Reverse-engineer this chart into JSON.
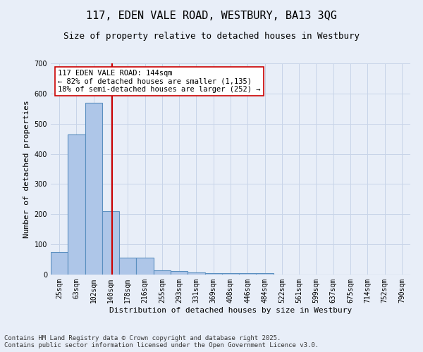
{
  "title": "117, EDEN VALE ROAD, WESTBURY, BA13 3QG",
  "subtitle": "Size of property relative to detached houses in Westbury",
  "xlabel": "Distribution of detached houses by size in Westbury",
  "ylabel": "Number of detached properties",
  "footer_line1": "Contains HM Land Registry data © Crown copyright and database right 2025.",
  "footer_line2": "Contains public sector information licensed under the Open Government Licence v3.0.",
  "categories": [
    "25sqm",
    "63sqm",
    "102sqm",
    "140sqm",
    "178sqm",
    "216sqm",
    "255sqm",
    "293sqm",
    "331sqm",
    "369sqm",
    "408sqm",
    "446sqm",
    "484sqm",
    "522sqm",
    "561sqm",
    "599sqm",
    "637sqm",
    "675sqm",
    "714sqm",
    "752sqm",
    "790sqm"
  ],
  "values": [
    75,
    465,
    570,
    210,
    57,
    57,
    15,
    12,
    8,
    5,
    5,
    5,
    5,
    0,
    0,
    0,
    0,
    0,
    0,
    0,
    0
  ],
  "bar_color": "#aec6e8",
  "bar_edge_color": "#5a8fc0",
  "bar_edge_width": 0.8,
  "grid_color": "#c8d4e8",
  "bg_color": "#e8eef8",
  "ylim": [
    0,
    700
  ],
  "yticks": [
    0,
    100,
    200,
    300,
    400,
    500,
    600,
    700
  ],
  "vline_x_index": 3.1,
  "vline_color": "#cc0000",
  "annotation_line1": "117 EDEN VALE ROAD: 144sqm",
  "annotation_line2": "← 82% of detached houses are smaller (1,135)",
  "annotation_line3": "18% of semi-detached houses are larger (252) →",
  "annotation_box_color": "#ffffff",
  "annotation_box_edge_color": "#cc0000",
  "title_fontsize": 11,
  "subtitle_fontsize": 9,
  "axis_label_fontsize": 8,
  "tick_fontsize": 7,
  "annotation_fontsize": 7.5,
  "footer_fontsize": 6.5
}
